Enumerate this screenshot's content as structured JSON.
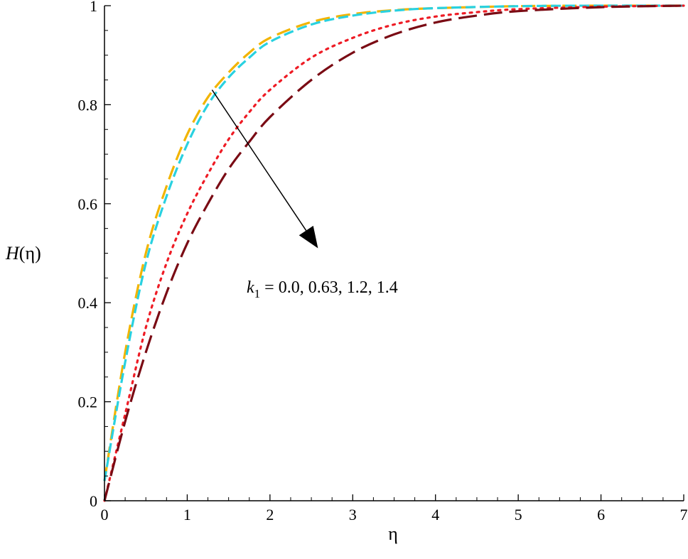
{
  "chart_data": {
    "type": "line",
    "xlabel": "η",
    "ylabel": {
      "var": "H",
      "paren_open": "(",
      "arg": "η",
      "paren_close": ")"
    },
    "xlim": [
      0,
      7
    ],
    "ylim": [
      0,
      1
    ],
    "xticks": [
      "0",
      "1",
      "2",
      "3",
      "4",
      "5",
      "6",
      "7"
    ],
    "yticks": [
      "0",
      "0.2",
      "0.4",
      "0.6",
      "0.8",
      "1"
    ],
    "xtick_values": [
      0,
      1,
      2,
      3,
      4,
      5,
      6,
      7
    ],
    "ytick_values": [
      0,
      0.2,
      0.4,
      0.6,
      0.8,
      1
    ],
    "grid": false,
    "legend": "none",
    "annotation": {
      "symbol": "k",
      "subscript": "1",
      "text": " = 0.0, 0.63, 1.2, 1.4",
      "arrow_from": [
        1.3,
        0.83
      ],
      "arrow_to": [
        2.58,
        0.51
      ]
    },
    "series": [
      {
        "color": "#f2b400",
        "dash": "20,9",
        "x": [
          0,
          0.25,
          0.5,
          0.75,
          1,
          1.25,
          1.5,
          1.75,
          2,
          2.5,
          3,
          3.5,
          4,
          5,
          6,
          7
        ],
        "y": [
          0.04,
          0.3,
          0.5,
          0.635,
          0.74,
          0.815,
          0.865,
          0.905,
          0.935,
          0.967,
          0.983,
          0.991,
          0.995,
          0.999,
          1.0,
          1.0
        ]
      },
      {
        "color": "#29d1e0",
        "dash": "14,6",
        "x": [
          0,
          0.25,
          0.5,
          0.75,
          1,
          1.25,
          1.5,
          1.75,
          2,
          2.5,
          3,
          3.5,
          4,
          5,
          6,
          7
        ],
        "y": [
          0.04,
          0.28,
          0.48,
          0.615,
          0.72,
          0.8,
          0.855,
          0.895,
          0.927,
          0.962,
          0.98,
          0.99,
          0.995,
          0.999,
          1.0,
          1.0
        ]
      },
      {
        "color": "#ee1c25",
        "dash": "3,7",
        "x": [
          0,
          0.25,
          0.5,
          0.75,
          1,
          1.25,
          1.5,
          1.75,
          2,
          2.5,
          3,
          3.5,
          4,
          4.5,
          5,
          6,
          7
        ],
        "y": [
          0,
          0.175,
          0.35,
          0.48,
          0.58,
          0.66,
          0.73,
          0.785,
          0.83,
          0.895,
          0.935,
          0.962,
          0.978,
          0.987,
          0.993,
          0.998,
          1.0
        ]
      },
      {
        "color": "#7a0b14",
        "dash": "26,10",
        "x": [
          0,
          0.25,
          0.5,
          0.75,
          1,
          1.25,
          1.5,
          1.75,
          2,
          2.5,
          3,
          3.5,
          4,
          4.5,
          5,
          6,
          7
        ],
        "y": [
          0,
          0.16,
          0.3,
          0.42,
          0.52,
          0.6,
          0.67,
          0.725,
          0.775,
          0.85,
          0.905,
          0.942,
          0.966,
          0.98,
          0.989,
          0.997,
          1.0
        ]
      }
    ]
  }
}
